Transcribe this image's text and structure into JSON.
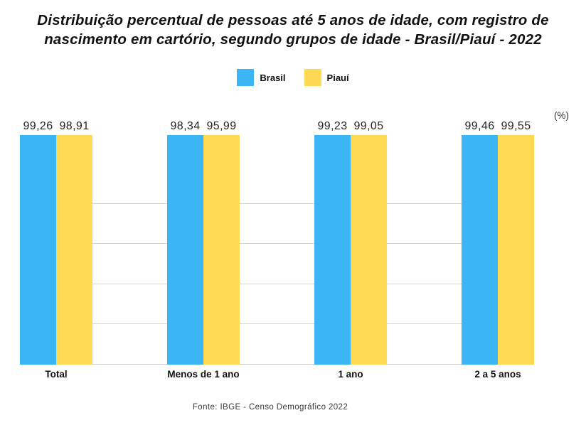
{
  "title": {
    "line1": "Distribuição percentual de pessoas até 5 anos de idade, com registro de",
    "line2": "nascimento em cartório, segundo grupos de idade - Brasil/Piauí - 2022"
  },
  "legend": [
    {
      "label": "Brasil",
      "color": "#3BB5F4"
    },
    {
      "label": "Piauí",
      "color": "#FFD954"
    }
  ],
  "unit_label": "(%)",
  "source": "Fonte: IBGE - Censo Demográfico 2022",
  "chart_data": {
    "type": "bar",
    "title": "Distribuição percentual de pessoas até 5 anos de idade, com registro de nascimento em cartório, segundo grupos de idade - Brasil/Piauí - 2022",
    "categories": [
      "Total",
      "Menos de 1 ano",
      "1 ano",
      "2 a 5 anos"
    ],
    "series": [
      {
        "name": "Brasil",
        "color": "#3BB5F4",
        "values": [
          99.26,
          98.34,
          99.23,
          99.46
        ],
        "labels": [
          "99,26",
          "98,34",
          "99,23",
          "99,46"
        ]
      },
      {
        "name": "Piauí",
        "color": "#FFD954",
        "values": [
          98.91,
          95.99,
          99.05,
          99.55
        ],
        "labels": [
          "98,91",
          "95,99",
          "99,05",
          "99,55"
        ]
      }
    ],
    "xlabel": "",
    "ylabel": "(%)",
    "ylim": [
      0,
      102
    ],
    "grid": "horizontal",
    "legend_position": "top-center",
    "value_labels_shown": true,
    "decimal_separator": ","
  }
}
